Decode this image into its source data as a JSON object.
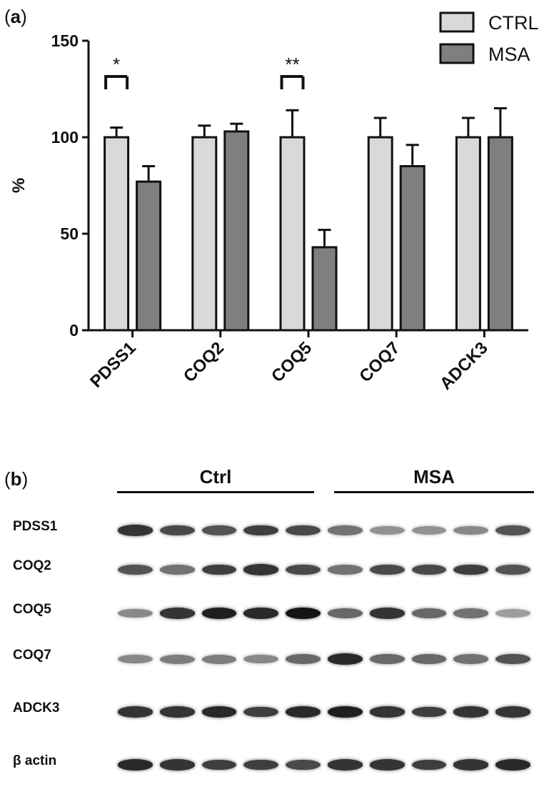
{
  "panel_a": {
    "label_paren_open": "(",
    "label_letter": "a",
    "label_paren_close": ")"
  },
  "panel_b": {
    "label_paren_open": "(",
    "label_letter": "b",
    "label_paren_close": ")"
  },
  "chart_data": {
    "type": "bar",
    "title": "",
    "xlabel": "",
    "ylabel": "%",
    "ylim": [
      0,
      150
    ],
    "yticks": [
      "0",
      "50",
      "100",
      "150"
    ],
    "categories": [
      "PDSS1",
      "COQ2",
      "COQ5",
      "COQ7",
      "ADCK3"
    ],
    "series": [
      {
        "name": "CTRL",
        "color": "#d9d9d9",
        "values": [
          100,
          100,
          100,
          100,
          100
        ],
        "errors": [
          5,
          6,
          14,
          10,
          10
        ]
      },
      {
        "name": "MSA",
        "color": "#7f7f7f",
        "values": [
          77,
          103,
          43,
          85,
          100
        ],
        "errors": [
          8,
          4,
          9,
          11,
          15
        ]
      }
    ],
    "significance": [
      {
        "category": "PDSS1",
        "label": "*"
      },
      {
        "category": "COQ5",
        "label": "**"
      }
    ],
    "legend_position": "top-right",
    "grid": false
  },
  "blot": {
    "groups": [
      {
        "label": "Ctrl",
        "lanes": 5
      },
      {
        "label": "MSA",
        "lanes": 5
      }
    ],
    "rows": [
      {
        "label": "PDSS1",
        "intensities": [
          0.85,
          0.75,
          0.7,
          0.8,
          0.75,
          0.55,
          0.4,
          0.4,
          0.45,
          0.7
        ]
      },
      {
        "label": "COQ2",
        "intensities": [
          0.7,
          0.55,
          0.8,
          0.85,
          0.75,
          0.55,
          0.75,
          0.75,
          0.8,
          0.7
        ]
      },
      {
        "label": "COQ5",
        "intensities": [
          0.45,
          0.85,
          0.95,
          0.9,
          1.0,
          0.6,
          0.85,
          0.6,
          0.55,
          0.35
        ]
      },
      {
        "label": "COQ7",
        "intensities": [
          0.45,
          0.5,
          0.5,
          0.45,
          0.6,
          0.9,
          0.6,
          0.6,
          0.55,
          0.7
        ]
      },
      {
        "label": "ADCK3",
        "intensities": [
          0.85,
          0.85,
          0.9,
          0.8,
          0.9,
          0.95,
          0.85,
          0.8,
          0.85,
          0.85
        ]
      },
      {
        "label": "β actin",
        "intensities": [
          0.9,
          0.85,
          0.8,
          0.8,
          0.75,
          0.85,
          0.85,
          0.8,
          0.85,
          0.9
        ]
      }
    ]
  }
}
